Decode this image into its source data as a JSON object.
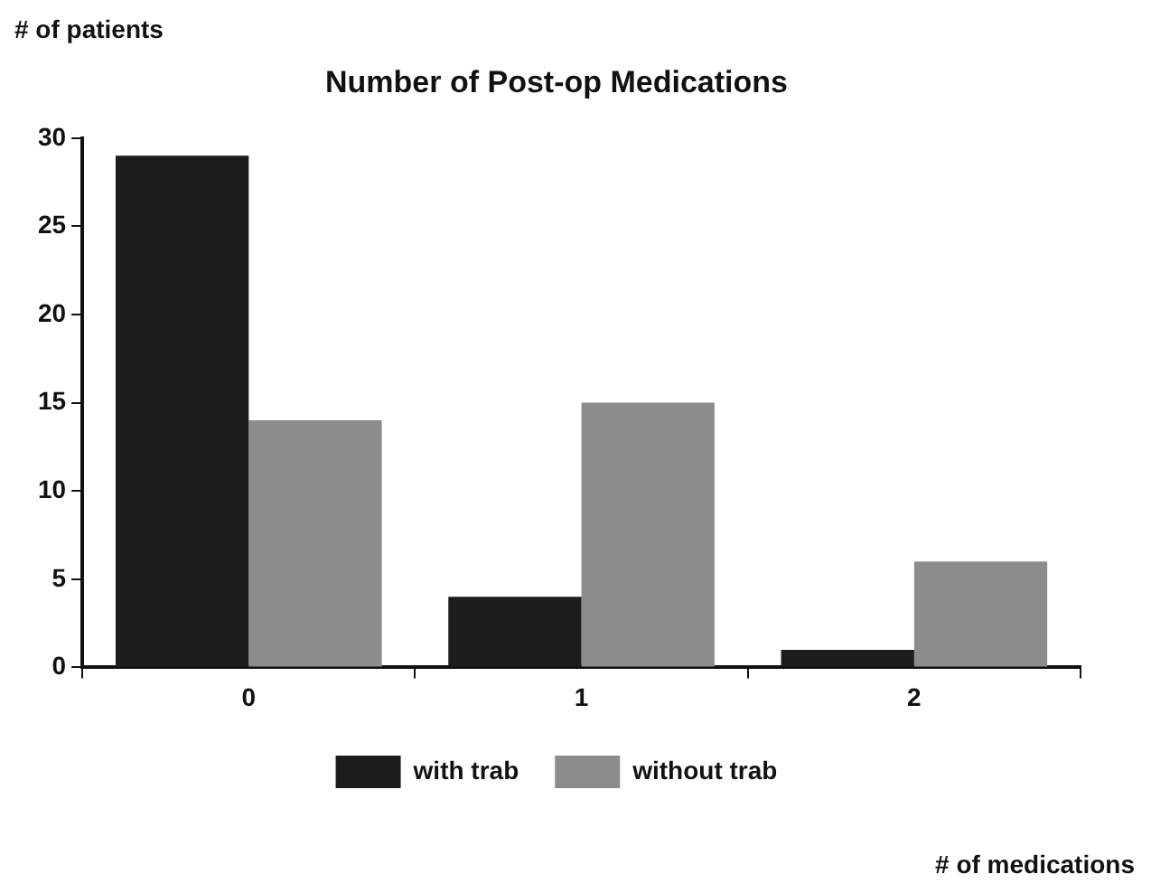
{
  "chart_data": {
    "type": "bar",
    "title": "Number of Post-op Medications",
    "annotations": [
      "# of medications"
    ],
    "ylabel": "# of patients",
    "categories": [
      "0",
      "1",
      "2"
    ],
    "series": [
      {
        "name": "with trab",
        "color": "#1c1c1c",
        "values": [
          29,
          4,
          1
        ]
      },
      {
        "name": "without trab",
        "color": "#8c8c8c",
        "values": [
          14,
          15,
          6
        ]
      }
    ],
    "ylim": [
      0,
      30
    ],
    "yticks": [
      0,
      5,
      10,
      15,
      20,
      25,
      30
    ],
    "grid": false,
    "legend": "bottom"
  }
}
